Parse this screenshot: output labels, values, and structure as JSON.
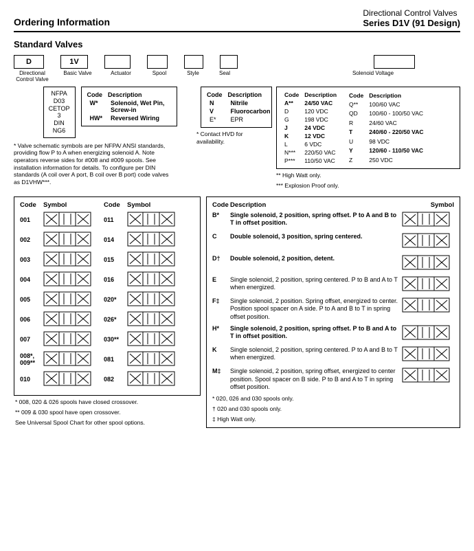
{
  "header": {
    "left": "Ordering Information",
    "right1": "Directional Control Valves",
    "right2": "Series D1V (91 Design)"
  },
  "section_title": "Standard Valves",
  "chain": {
    "boxes": [
      "D",
      "1V",
      "",
      "",
      "",
      "",
      ""
    ],
    "labels": [
      "Directional Control Valve",
      "Basic Valve",
      "Actuator",
      "Spool",
      "Style",
      "Seal",
      "Solenoid Voltage"
    ],
    "label_widths": [
      44,
      40,
      38,
      30,
      28,
      26,
      80
    ]
  },
  "nfpa_box": {
    "l1": "NFPA D03",
    "l2": "CETOP 3",
    "l3": "DIN NG6"
  },
  "actuator": {
    "h1": "Code",
    "h2": "Description",
    "rows": [
      {
        "c": "W*",
        "d": "Solenoid, Wet Pin, Screw-in",
        "bold": true
      },
      {
        "c": "HW*",
        "d": "Reversed Wiring",
        "bold": true
      }
    ]
  },
  "valve_note": "* Valve schematic symbols are per NFPA/ ANSI standards, providing flow P to A when energizing solenoid A. Note operators reverse sides for #008 and #009 spools. See installation information for details. To configure per DIN standards (A coil over A port, B coil over B port) code valves as D1VHW***.",
  "seal": {
    "h1": "Code",
    "h2": "Description",
    "rows": [
      {
        "c": "N",
        "d": "Nitrile",
        "bold": true
      },
      {
        "c": "V",
        "d": "Fluorocarbon",
        "bold": true
      },
      {
        "c": "E*",
        "d": "EPR",
        "bold": false
      }
    ],
    "foot": "* Contact HVD for availability."
  },
  "solenoid": {
    "h": "Code Description",
    "left": [
      {
        "c": "A**",
        "d": "24/50 VAC",
        "bold": true
      },
      {
        "c": "D",
        "d": "120 VDC"
      },
      {
        "c": "G",
        "d": "198 VDC"
      },
      {
        "c": "J",
        "d": "24 VDC",
        "bold": true
      },
      {
        "c": "K",
        "d": "12 VDC",
        "bold": true
      },
      {
        "c": "L",
        "d": "6 VDC"
      },
      {
        "c": "N***",
        "d": "220/50 VAC"
      },
      {
        "c": "P***",
        "d": "110/50 VAC"
      }
    ],
    "right": [
      {
        "c": "Q**",
        "d": "100/60 VAC"
      },
      {
        "c": "QD",
        "d": "100/60 - 100/50 VAC"
      },
      {
        "c": "R",
        "d": "24/60 VAC"
      },
      {
        "c": "T",
        "d": "240/60 - 220/50 VAC",
        "bold": true
      },
      {
        "c": "U",
        "d": "98 VDC"
      },
      {
        "c": "Y",
        "d": "120/60 - 110/50 VAC",
        "bold": true
      },
      {
        "c": "Z",
        "d": "250 VDC"
      }
    ],
    "foot1": "** High Watt only.",
    "foot2": "*** Explosion Proof only."
  },
  "spools": {
    "h1": "Code",
    "h2": "Symbol",
    "left": [
      "001",
      "002",
      "003",
      "004",
      "005",
      "006",
      "007",
      "008*, 009**",
      "010"
    ],
    "right": [
      "011",
      "014",
      "015",
      "016",
      "020*",
      "026*",
      "030**",
      "081",
      "082"
    ],
    "foot1": "*   008, 020 & 026 spools have closed crossover.",
    "foot2": "**  009 & 030 spool have open crossover.",
    "foot3": "See Universal Spool Chart for other spool options."
  },
  "styles": {
    "h1": "Code",
    "h2": "Description",
    "h3": "Symbol",
    "rows": [
      {
        "c": "B*",
        "d": "Single solenoid, 2 position, spring offset. P to A and B to T in offset position.",
        "bold": true
      },
      {
        "c": "C",
        "d": "Double solenoid, 3 position, spring centered.",
        "bold": true
      },
      {
        "c": "D†",
        "d": "Double solenoid, 2 position, detent.",
        "bold": true
      },
      {
        "c": "E",
        "d": "Single solenoid, 2 position, spring centered. P to B and A to T when energized."
      },
      {
        "c": "F‡",
        "d": "Single solenoid, 2 position. Spring offset, energized to center. Position spool spacer on A side. P to A and B to T in spring offset position."
      },
      {
        "c": "H*",
        "d": "Single solenoid, 2 position, spring offset. P to B and A to T in offset position.",
        "bold": true
      },
      {
        "c": "K",
        "d": "Single solenoid, 2 position, spring centered. P to A and B to T when energized."
      },
      {
        "c": "M‡",
        "d": "Single solenoid, 2 position, spring offset, energized to center position. Spool spacer on B side. P to B and A to T in spring offset position."
      }
    ],
    "foot1": "*  020, 026 and 030 spools only.",
    "foot2": "†  020 and 030 spools only.",
    "foot3": "‡  High Watt only."
  }
}
